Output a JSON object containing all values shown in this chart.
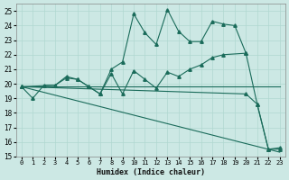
{
  "xlabel": "Humidex (Indice chaleur)",
  "bg_color": "#cce8e4",
  "line_color": "#1a6b5a",
  "grid_color": "#b0d8d0",
  "xlim": [
    -0.5,
    23.5
  ],
  "ylim": [
    15,
    25.5
  ],
  "yticks": [
    15,
    16,
    17,
    18,
    19,
    20,
    21,
    22,
    23,
    24,
    25
  ],
  "xticks": [
    0,
    1,
    2,
    3,
    4,
    5,
    6,
    7,
    8,
    9,
    10,
    11,
    12,
    13,
    14,
    15,
    16,
    17,
    18,
    19,
    20,
    21,
    22,
    23
  ],
  "line1_x": [
    0,
    1,
    2,
    3,
    4,
    5,
    6,
    7,
    8,
    9,
    10,
    11,
    12,
    13,
    14,
    15,
    16,
    17,
    18,
    19,
    20,
    21,
    22,
    23
  ],
  "line1_y": [
    19.8,
    19.0,
    19.9,
    19.9,
    20.5,
    20.3,
    19.8,
    19.3,
    21.0,
    21.5,
    24.8,
    23.5,
    22.7,
    25.1,
    23.6,
    22.9,
    22.9,
    24.3,
    24.1,
    24.0,
    22.1,
    18.6,
    15.5,
    15.6
  ],
  "line2_x": [
    0,
    3,
    4,
    5,
    6,
    7,
    8,
    9,
    10,
    11,
    12,
    13,
    14,
    15,
    16,
    17,
    18,
    20
  ],
  "line2_y": [
    19.8,
    19.9,
    20.4,
    20.3,
    19.8,
    19.3,
    20.7,
    19.3,
    20.9,
    20.3,
    19.7,
    20.8,
    20.5,
    21.0,
    21.3,
    21.8,
    22.0,
    22.1
  ],
  "line3_x": [
    0,
    23
  ],
  "line3_y": [
    19.8,
    19.8
  ],
  "line4_x": [
    0,
    20,
    21,
    22,
    23
  ],
  "line4_y": [
    19.8,
    19.3,
    18.6,
    15.5,
    15.5
  ],
  "line5_x": [
    0,
    23
  ],
  "line5_y": [
    19.8,
    15.3
  ]
}
